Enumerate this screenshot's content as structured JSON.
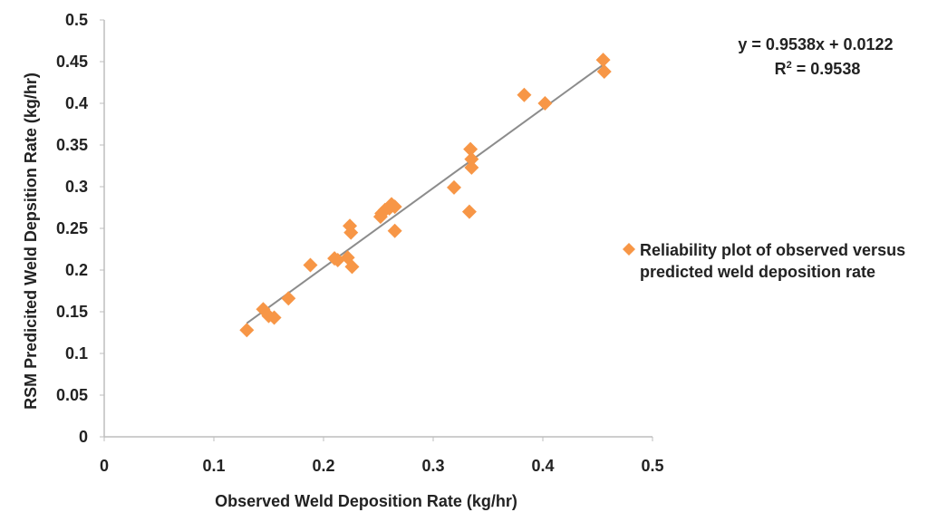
{
  "chart_data": {
    "type": "scatter",
    "xlabel": "Observed Weld Deposition Rate (kg/hr)",
    "ylabel": "RSM Predicited Weld Depsition Rate (kg/hr)",
    "xlim": [
      0,
      0.5
    ],
    "ylim": [
      0,
      0.5
    ],
    "x_ticks": [
      "0",
      "0.1",
      "0.2",
      "0.3",
      "0.4",
      "0.5"
    ],
    "y_ticks": [
      "0",
      "0.05",
      "0.1",
      "0.15",
      "0.2",
      "0.25",
      "0.3",
      "0.35",
      "0.4",
      "0.45",
      "0.5"
    ],
    "grid": false,
    "legend_position": "right",
    "series": [
      {
        "name": "Reliability plot of observed versus predicted weld deposition rate",
        "color": "#f79646",
        "marker": "diamond",
        "points": [
          [
            0.13,
            0.128
          ],
          [
            0.145,
            0.153
          ],
          [
            0.15,
            0.145
          ],
          [
            0.155,
            0.143
          ],
          [
            0.168,
            0.166
          ],
          [
            0.188,
            0.206
          ],
          [
            0.21,
            0.214
          ],
          [
            0.213,
            0.212
          ],
          [
            0.222,
            0.215
          ],
          [
            0.224,
            0.253
          ],
          [
            0.225,
            0.245
          ],
          [
            0.226,
            0.204
          ],
          [
            0.252,
            0.264
          ],
          [
            0.253,
            0.268
          ],
          [
            0.256,
            0.272
          ],
          [
            0.26,
            0.274
          ],
          [
            0.262,
            0.279
          ],
          [
            0.265,
            0.276
          ],
          [
            0.265,
            0.247
          ],
          [
            0.319,
            0.299
          ],
          [
            0.333,
            0.27
          ],
          [
            0.334,
            0.345
          ],
          [
            0.335,
            0.333
          ],
          [
            0.335,
            0.323
          ],
          [
            0.383,
            0.41
          ],
          [
            0.402,
            0.4
          ],
          [
            0.455,
            0.452
          ],
          [
            0.456,
            0.438
          ]
        ]
      }
    ],
    "trendline": {
      "type": "linear",
      "slope": 0.9538,
      "intercept": 0.0122,
      "x_range": [
        0.13,
        0.456
      ],
      "color": "#8c8c8c",
      "equation": "y = 0.9538x + 0.0122",
      "r2_label": "R",
      "r2_sup": "2",
      "r2_value": " = 0.9538"
    }
  }
}
